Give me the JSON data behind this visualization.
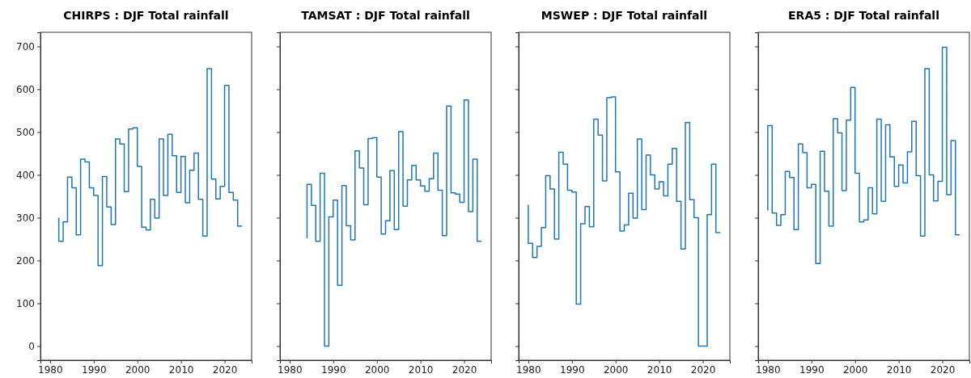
{
  "chart_data": [
    {
      "type": "step",
      "title": "CHIRPS  : DJF Total rainfall",
      "x": [
        1982,
        1983,
        1984,
        1985,
        1986,
        1987,
        1988,
        1989,
        1990,
        1991,
        1992,
        1993,
        1994,
        1995,
        1996,
        1997,
        1998,
        1999,
        2000,
        2001,
        2002,
        2003,
        2004,
        2005,
        2006,
        2007,
        2008,
        2009,
        2010,
        2011,
        2012,
        2013,
        2014,
        2015,
        2016,
        2017,
        2018,
        2019,
        2020,
        2021,
        2022,
        2023,
        2024
      ],
      "series": [
        {
          "color": "#1f77b4",
          "values": [
            300,
            245,
            290,
            395,
            370,
            260,
            437,
            430,
            370,
            352,
            188,
            396,
            325,
            284,
            484,
            472,
            361,
            507,
            510,
            420,
            278,
            271,
            343,
            299,
            484,
            352,
            495,
            445,
            359,
            443,
            335,
            411,
            451,
            343,
            257,
            648,
            390,
            344,
            373,
            609,
            359,
            341,
            280
          ]
        }
      ],
      "xlim": [
        1977.8,
        2026.2
      ],
      "ylim": [
        -33,
        733
      ],
      "xticks": [
        1980,
        1990,
        2000,
        2010,
        2020
      ],
      "yticks": [
        0,
        100,
        200,
        300,
        400,
        500,
        600,
        700
      ]
    },
    {
      "type": "step",
      "title": "TAMSAT  : DJF Total rainfall",
      "x": [
        1984,
        1985,
        1986,
        1987,
        1988,
        1989,
        1990,
        1991,
        1992,
        1993,
        1994,
        1995,
        1996,
        1997,
        1998,
        1999,
        2000,
        2001,
        2002,
        2003,
        2004,
        2005,
        2006,
        2007,
        2008,
        2009,
        2010,
        2011,
        2012,
        2013,
        2014,
        2015,
        2016,
        2017,
        2018,
        2019,
        2020,
        2021,
        2022,
        2023,
        2024
      ],
      "series": [
        {
          "color": "#1f77b4",
          "values": [
            252,
            378,
            329,
            245,
            404,
            0,
            302,
            341,
            142,
            375,
            281,
            248,
            456,
            416,
            330,
            485,
            487,
            395,
            262,
            293,
            410,
            272,
            501,
            327,
            388,
            422,
            388,
            374,
            362,
            391,
            451,
            364,
            258,
            561,
            358,
            355,
            336,
            575,
            314,
            437,
            245
          ]
        }
      ],
      "xlim": [
        1977.8,
        2026.2
      ],
      "ylim": [
        -33,
        733
      ],
      "xticks": [
        1980,
        1990,
        2000,
        2010,
        2020
      ],
      "yticks": [
        {
          "value": 0,
          "label": null
        },
        {
          "value": 100,
          "label": null
        },
        {
          "value": 200,
          "label": null
        },
        {
          "value": 300,
          "label": null
        },
        {
          "value": 400,
          "label": null
        },
        {
          "value": 500,
          "label": null
        },
        {
          "value": 600,
          "label": null
        },
        {
          "value": 700,
          "label": null
        }
      ],
      "tick_labels": "x"
    },
    {
      "type": "step",
      "title": "MSWEP  : DJF Total rainfall",
      "x": [
        1980,
        1981,
        1982,
        1983,
        1984,
        1985,
        1986,
        1987,
        1988,
        1989,
        1990,
        1991,
        1992,
        1993,
        1994,
        1995,
        1996,
        1997,
        1998,
        1999,
        2000,
        2001,
        2002,
        2003,
        2004,
        2005,
        2006,
        2007,
        2008,
        2009,
        2010,
        2011,
        2012,
        2013,
        2014,
        2015,
        2016,
        2017,
        2018,
        2019,
        2020,
        2021,
        2022,
        2023,
        2024
      ],
      "series": [
        {
          "color": "#1f77b4",
          "values": [
            330,
            240,
            207,
            233,
            277,
            398,
            367,
            250,
            453,
            425,
            364,
            360,
            98,
            286,
            326,
            279,
            530,
            493,
            386,
            580,
            582,
            407,
            269,
            283,
            357,
            299,
            484,
            319,
            446,
            400,
            367,
            384,
            351,
            425,
            462,
            338,
            227,
            522,
            342,
            300,
            0,
            0,
            307,
            425,
            265
          ]
        }
      ],
      "xlim": [
        1977.8,
        2026.2
      ],
      "ylim": [
        -33,
        733
      ],
      "xticks": [
        1980,
        1990,
        2000,
        2010,
        2020
      ],
      "yticks": [
        {
          "value": 0,
          "label": null
        },
        {
          "value": 100,
          "label": null
        },
        {
          "value": 200,
          "label": null
        },
        {
          "value": 300,
          "label": null
        },
        {
          "value": 400,
          "label": null
        },
        {
          "value": 500,
          "label": null
        },
        {
          "value": 600,
          "label": null
        },
        {
          "value": 700,
          "label": null
        }
      ],
      "tick_labels": "x"
    },
    {
      "type": "step",
      "title": "ERA5  : DJF Total rainfall",
      "x": [
        1980,
        1981,
        1982,
        1983,
        1984,
        1985,
        1986,
        1987,
        1988,
        1989,
        1990,
        1991,
        1992,
        1993,
        1994,
        1995,
        1996,
        1997,
        1998,
        1999,
        2000,
        2001,
        2002,
        2003,
        2004,
        2005,
        2006,
        2007,
        2008,
        2009,
        2010,
        2011,
        2012,
        2013,
        2014,
        2015,
        2016,
        2017,
        2018,
        2019,
        2020,
        2021,
        2022,
        2023,
        2024
      ],
      "series": [
        {
          "color": "#1f77b4",
          "values": [
            317,
            515,
            311,
            282,
            307,
            408,
            394,
            272,
            472,
            452,
            370,
            378,
            193,
            455,
            362,
            280,
            531,
            498,
            363,
            528,
            604,
            404,
            290,
            295,
            370,
            309,
            530,
            338,
            517,
            442,
            373,
            423,
            381,
            454,
            525,
            398,
            257,
            648,
            400,
            339,
            385,
            698,
            354,
            480,
            260
          ]
        }
      ],
      "xlim": [
        1977.8,
        2026.2
      ],
      "ylim": [
        -33,
        733
      ],
      "xticks": [
        1980,
        1990,
        2000,
        2010,
        2020
      ],
      "yticks": [
        {
          "value": 0,
          "label": null
        },
        {
          "value": 100,
          "label": null
        },
        {
          "value": 200,
          "label": null
        },
        {
          "value": 300,
          "label": null
        },
        {
          "value": 400,
          "label": null
        },
        {
          "value": 500,
          "label": null
        },
        {
          "value": 600,
          "label": null
        },
        {
          "value": 700,
          "label": null
        }
      ],
      "tick_labels": "x"
    }
  ]
}
